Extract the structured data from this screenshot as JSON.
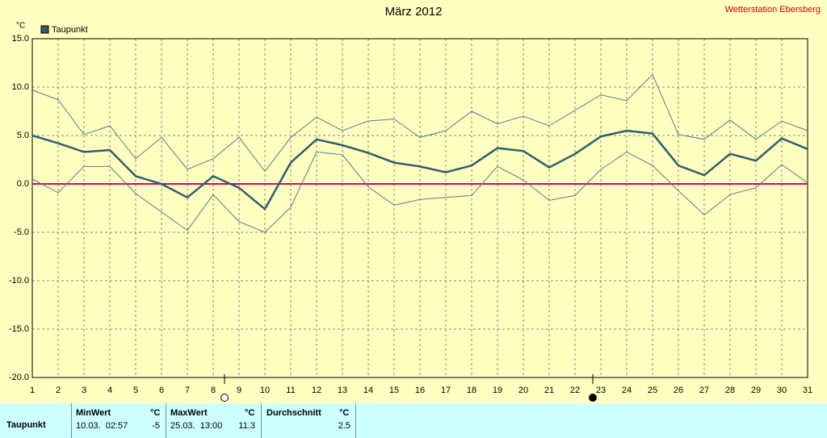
{
  "chart_data": {
    "type": "line",
    "title": "März 2012",
    "station": "Wetterstation Ebersberg",
    "ylabel": "°C",
    "x": [
      1,
      2,
      3,
      4,
      5,
      6,
      7,
      8,
      9,
      10,
      11,
      12,
      13,
      14,
      15,
      16,
      17,
      18,
      19,
      20,
      21,
      22,
      23,
      24,
      25,
      26,
      27,
      28,
      29,
      30,
      31
    ],
    "xlim": [
      1,
      31
    ],
    "ylim": [
      -20,
      15
    ],
    "yticks": [
      {
        "value": -20,
        "label": "-20.0"
      },
      {
        "value": -15,
        "label": "-15.0"
      },
      {
        "value": -10,
        "label": "-10.0"
      },
      {
        "value": -5,
        "label": "-5.0"
      },
      {
        "value": 0,
        "label": "0.0"
      },
      {
        "value": 5,
        "label": "5.0"
      },
      {
        "value": 10,
        "label": "10.0"
      },
      {
        "value": 15,
        "label": "15.0"
      }
    ],
    "grid": true,
    "zero_line_color": "#e0006a",
    "series": [
      {
        "name": "Taupunkt",
        "color": "#2f5f6f",
        "values": [
          5.0,
          4.2,
          3.3,
          3.5,
          0.8,
          0.0,
          -1.4,
          0.8,
          -0.4,
          -2.6,
          2.2,
          4.6,
          4.0,
          3.2,
          2.2,
          1.8,
          1.2,
          1.9,
          3.7,
          3.4,
          1.7,
          3.1,
          4.9,
          5.5,
          5.2,
          1.9,
          0.9,
          3.1,
          2.4,
          4.7,
          3.6
        ]
      },
      {
        "color": "#4f7f8f",
        "values": [
          9.7,
          8.7,
          5.1,
          6.0,
          2.6,
          4.8,
          1.5,
          2.6,
          4.8,
          1.3,
          4.8,
          6.9,
          5.5,
          6.5,
          6.7,
          4.8,
          5.5,
          7.5,
          6.2,
          7.0,
          6.0,
          7.6,
          9.2,
          8.6,
          11.3,
          5.1,
          4.6,
          6.6,
          4.6,
          6.5,
          5.5
        ]
      },
      {
        "color": "#4f7f8f",
        "values": [
          0.5,
          -0.9,
          1.8,
          1.8,
          -1.0,
          -2.9,
          -4.8,
          -1.1,
          -3.9,
          -5.0,
          -2.4,
          3.3,
          3.0,
          -0.3,
          -2.2,
          -1.6,
          -1.4,
          -1.2,
          1.8,
          0.4,
          -1.7,
          -1.2,
          1.5,
          3.3,
          1.9,
          -0.7,
          -3.2,
          -1.1,
          -0.4,
          2.0,
          0.1
        ]
      }
    ]
  },
  "table": {
    "header": [
      "MinWert",
      "°C",
      "MaxWert",
      "°C",
      "Durchschnitt",
      "°C"
    ],
    "rows": [
      [
        "Taupunkt",
        "10.03.  02:57",
        -5.0,
        "25.03.  13:00",
        11.3,
        2.5
      ]
    ]
  }
}
